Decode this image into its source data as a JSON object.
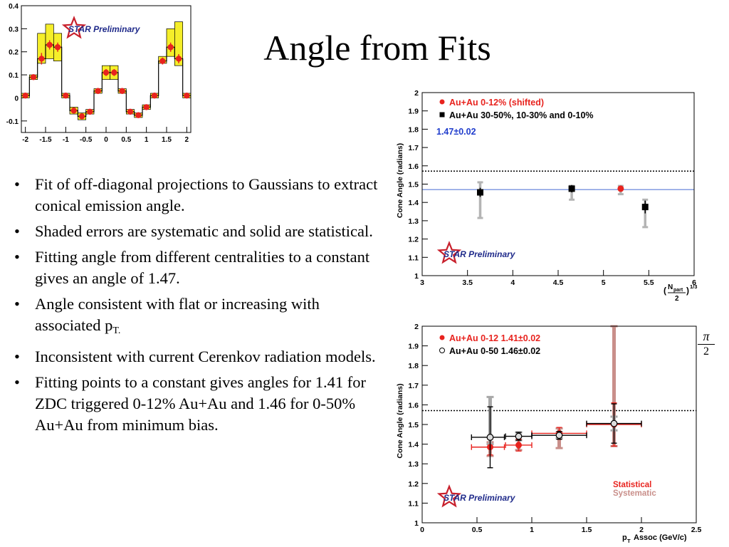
{
  "slide": {
    "title": "Angle from Fits",
    "bullets": [
      {
        "text": "Fit of off-diagonal projections to Gaussians to extract conical emission angle."
      },
      {
        "text": "Shaded errors are systematic and solid are statistical."
      },
      {
        "text": "Fitting angle from different centralities to a constant gives an angle of 1.47."
      },
      {
        "text": "Angle consistent with flat or increasing with associated p",
        "sub": "T."
      },
      {
        "text": "Inconsistent with current Cerenkov radiation models."
      },
      {
        "text": "Fitting points to a constant gives angles for 1.41 for ZDC triggered 0-12% Au+Au and 1.46 for 0-50% Au+Au from minimum bias."
      }
    ],
    "pi_over_2": {
      "num": "π",
      "den": "2"
    }
  },
  "chart_data": [
    {
      "type": "bar",
      "name": "projection-histogram",
      "xlim": [
        -2.1,
        2.1
      ],
      "ylim": [
        -0.15,
        0.4
      ],
      "xticks": [
        "-2",
        "-1.5",
        "-1",
        "-0.5",
        "0",
        "0.5",
        "1",
        "1.5",
        "2"
      ],
      "yticks": [
        "-0.1",
        "0",
        "0.1",
        "0.2",
        "0.3",
        "0.4"
      ],
      "bin_centers": [
        -2.0,
        -1.8,
        -1.6,
        -1.4,
        -1.2,
        -1.0,
        -0.8,
        -0.6,
        -0.4,
        -0.2,
        0.0,
        0.2,
        0.4,
        0.6,
        0.8,
        1.0,
        1.2,
        1.4,
        1.6,
        1.8,
        2.0
      ],
      "values": [
        0.01,
        0.09,
        0.17,
        0.23,
        0.22,
        0.01,
        -0.055,
        -0.08,
        -0.06,
        0.03,
        0.11,
        0.11,
        0.03,
        -0.06,
        -0.075,
        -0.04,
        0.01,
        0.16,
        0.22,
        0.17,
        0.01
      ],
      "sys_low": [
        0.0,
        0.08,
        0.15,
        0.17,
        0.16,
        0.0,
        -0.07,
        -0.095,
        -0.07,
        0.02,
        0.08,
        0.08,
        0.02,
        -0.07,
        -0.085,
        -0.05,
        0.0,
        0.15,
        0.18,
        0.14,
        0.0
      ],
      "sys_high": [
        0.02,
        0.1,
        0.28,
        0.32,
        0.28,
        0.02,
        -0.04,
        -0.065,
        -0.05,
        0.04,
        0.14,
        0.14,
        0.04,
        -0.05,
        -0.065,
        -0.03,
        0.02,
        0.18,
        0.3,
        0.33,
        0.02
      ],
      "stat_err": [
        0.01,
        0.012,
        0.025,
        0.02,
        0.02,
        0.012,
        0.012,
        0.012,
        0.012,
        0.012,
        0.015,
        0.015,
        0.012,
        0.012,
        0.012,
        0.012,
        0.012,
        0.015,
        0.02,
        0.02,
        0.01
      ],
      "logo": "STAR Preliminary",
      "colors": {
        "points": "#e8231e",
        "band": "#f5ee2a",
        "line": "#000000"
      }
    },
    {
      "type": "scatter",
      "name": "centrality-cone-angle",
      "xlabel": "N",
      "xlabel_sub": "part",
      "xlabel_den": "2",
      "xlabel_exp": "1/3",
      "ylabel": "Cone Angle (radians)",
      "xlim": [
        3,
        6
      ],
      "ylim": [
        1,
        2
      ],
      "xticks": [
        "3",
        "3.5",
        "4",
        "4.5",
        "5",
        "5.5",
        "6"
      ],
      "yticks": [
        "1",
        "1.1",
        "1.2",
        "1.3",
        "1.4",
        "1.5",
        "1.6",
        "1.7",
        "1.8",
        "1.9",
        "2"
      ],
      "dotted_y": 1.5708,
      "fit_y": 1.47,
      "legend": [
        {
          "label": "Au+Au 0-12% (shifted)",
          "marker": "circle",
          "color": "#e8231e"
        },
        {
          "label": "Au+Au 30-50%, 10-30% and 0-10%",
          "marker": "square",
          "color": "#000000"
        },
        {
          "label": "1.47±0.02",
          "marker": "none",
          "color": "#1f3ccc"
        }
      ],
      "series": [
        {
          "name": "Au+Au 0-12% (shifted)",
          "x": [
            5.19
          ],
          "y": [
            1.475
          ],
          "stat": [
            0.015
          ],
          "sys_low": [
            1.445
          ],
          "sys_high": [
            1.49
          ]
        },
        {
          "name": "Au+Au 30-50%, 10-30% and 0-10%",
          "x": [
            3.64,
            4.65,
            5.46
          ],
          "y": [
            1.455,
            1.475,
            1.375
          ],
          "stat": [
            0.025,
            0.02,
            0.035
          ],
          "sys_low": [
            1.315,
            1.415,
            1.265
          ],
          "sys_high": [
            1.51,
            1.49,
            1.415
          ]
        }
      ],
      "logo": "STAR Preliminary"
    },
    {
      "type": "scatter",
      "name": "pt-cone-angle",
      "xlabel": "p",
      "xlabel_sub": "T",
      "xlabel_tail": "Assoc (GeV/c)",
      "ylabel": "Cone Angle (radians)",
      "xlim": [
        0,
        2.5
      ],
      "ylim": [
        1,
        2
      ],
      "xticks": [
        "0",
        "0.5",
        "1",
        "1.5",
        "2",
        "2.5"
      ],
      "yticks": [
        "1",
        "1.1",
        "1.2",
        "1.3",
        "1.4",
        "1.5",
        "1.6",
        "1.7",
        "1.8",
        "1.9",
        "2"
      ],
      "dotted_y": 1.5708,
      "legend": [
        {
          "label": "Au+Au 0-12 1.41±0.02",
          "marker": "circle",
          "color": "#e8231e"
        },
        {
          "label": "Au+Au 0-50 1.46±0.02",
          "marker": "open-circle",
          "color": "#000000"
        }
      ],
      "labels": {
        "statistical": "Statistical",
        "systematic": "Systematic"
      },
      "series": [
        {
          "name": "Au+Au 0-12 1.41±0.02",
          "x": [
            0.62,
            0.88,
            1.25,
            1.75
          ],
          "y": [
            1.385,
            1.395,
            1.455,
            1.5
          ],
          "xerr_low": [
            0.17,
            0.12,
            0.25,
            0.25
          ],
          "xerr_high": [
            0.13,
            0.12,
            0.25,
            0.25
          ],
          "stat": [
            0.04,
            0.03,
            0.03,
            0.11
          ],
          "sys_low": [
            1.34,
            1.37,
            1.38,
            1.39
          ],
          "sys_high": [
            1.41,
            1.42,
            1.48,
            2.0
          ]
        },
        {
          "name": "Au+Au 0-50 1.46±0.02",
          "x": [
            0.62,
            0.88,
            1.25,
            1.75
          ],
          "y": [
            1.435,
            1.44,
            1.445,
            1.505
          ],
          "xerr_low": [
            0.17,
            0.12,
            0.25,
            0.25
          ],
          "xerr_high": [
            0.13,
            0.12,
            0.25,
            0.25
          ],
          "stat": [
            0.155,
            0.02,
            0.02,
            0.1
          ],
          "sys_low": [
            1.4,
            1.42,
            1.43,
            1.47
          ],
          "sys_high": [
            1.64,
            1.46,
            1.46,
            1.54
          ]
        }
      ],
      "logo": "STAR Preliminary"
    }
  ]
}
